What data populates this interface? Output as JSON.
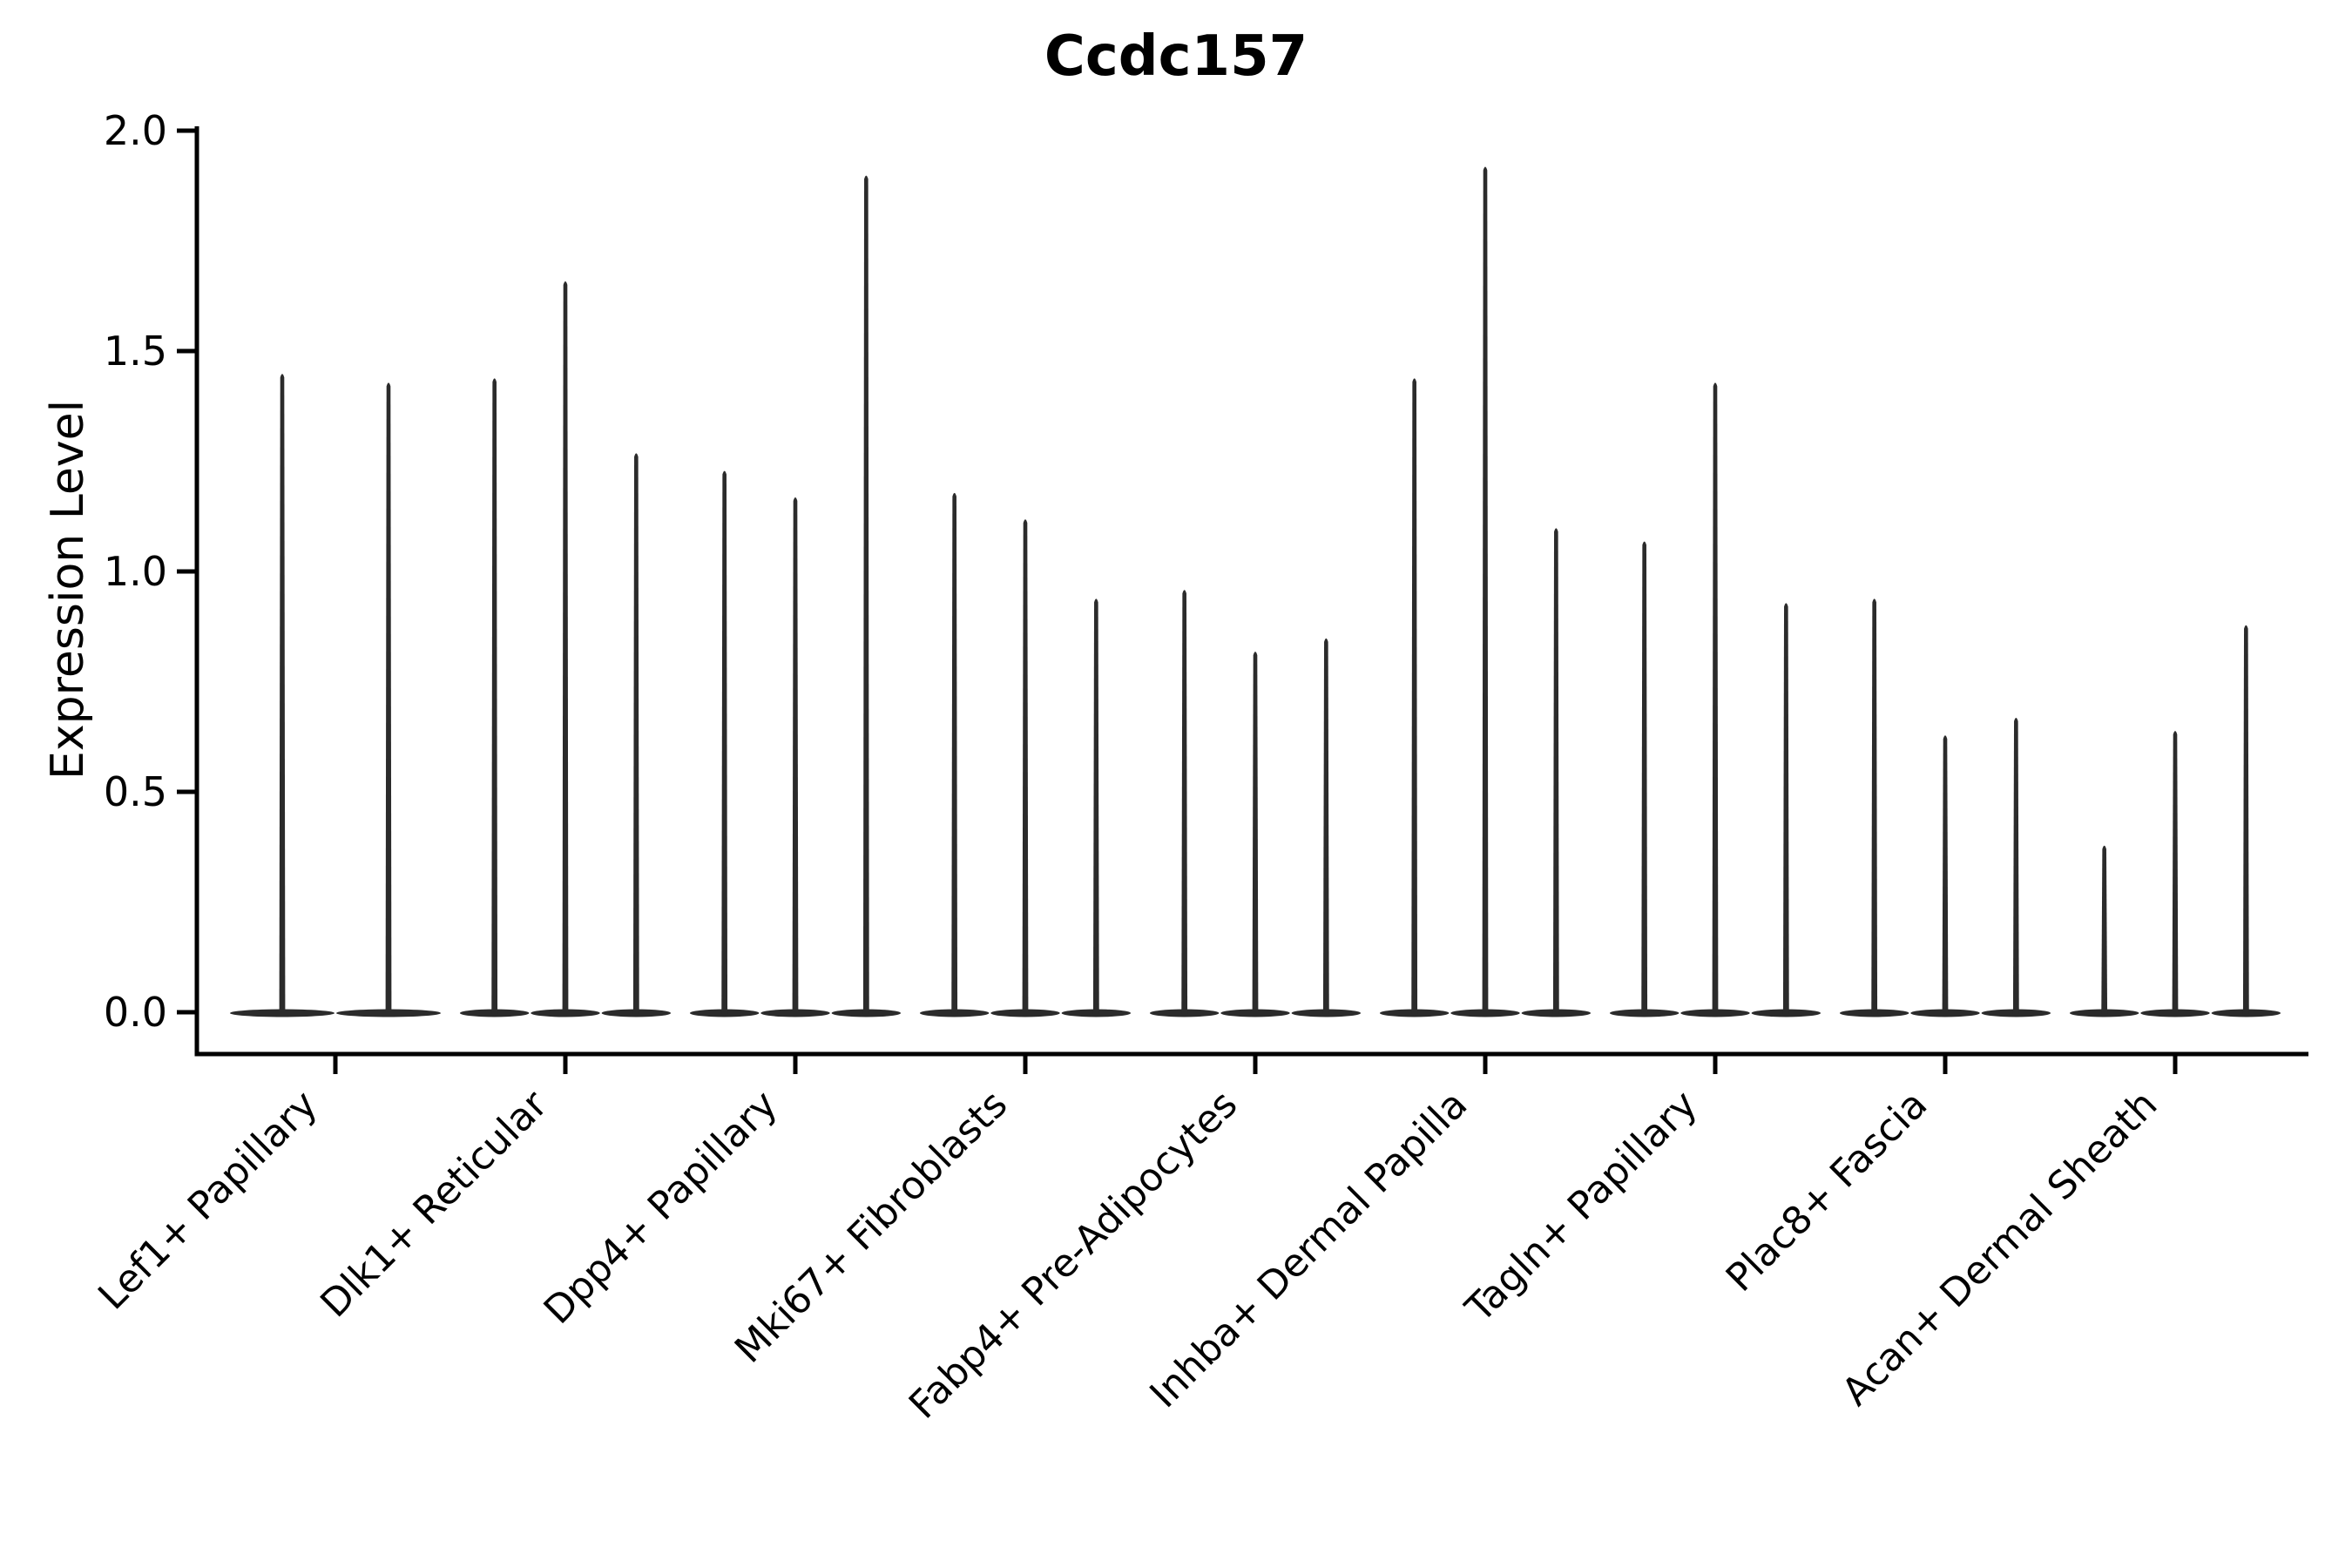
{
  "chart_data": {
    "type": "violin",
    "title": "Ccdc157",
    "xlabel": "",
    "ylabel": "Expression Level",
    "ylim": [
      0.0,
      2.0
    ],
    "yticks": [
      0.0,
      0.5,
      1.0,
      1.5,
      2.0
    ],
    "ytick_labels": [
      "0.0",
      "0.5",
      "1.0",
      "1.5",
      "2.0"
    ],
    "grid": "off",
    "legend": "none",
    "categories": [
      "Lef1+ Papillary",
      "Dlk1+ Reticular",
      "Dpp4+ Papillary",
      "Mki67+ Fibroblasts",
      "Fabp4+ Pre-Adipocytes",
      "Inhba+ Dermal Papilla",
      "Tagln+ Papillary",
      "Plac8+ Fascia",
      "Acan+ Dermal Sheath"
    ],
    "violins_per_category": [
      2,
      3,
      3,
      3,
      3,
      3,
      3,
      3,
      3
    ],
    "violin_peak_values": [
      [
        1.45,
        1.43
      ],
      [
        1.44,
        1.66,
        1.27
      ],
      [
        1.23,
        1.17,
        1.9
      ],
      [
        1.18,
        1.12,
        0.94
      ],
      [
        0.96,
        0.82,
        0.85
      ],
      [
        1.44,
        1.92,
        1.1
      ],
      [
        1.07,
        1.43,
        0.93
      ],
      [
        0.94,
        0.63,
        0.67
      ],
      [
        0.38,
        0.64,
        0.88
      ]
    ],
    "violin_shape_note": "needle-thin violins: flat base blob at 0 with a narrow spike up to the peak value",
    "colors": {
      "violin": "#2b2b2b",
      "axis": "#000000",
      "text": "#000000",
      "background": "#ffffff"
    }
  }
}
